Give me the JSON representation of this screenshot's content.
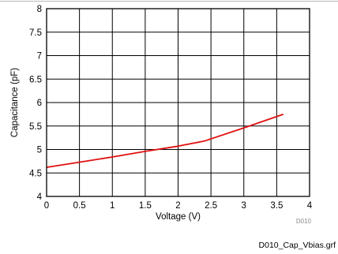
{
  "chart_data": {
    "type": "line",
    "title": "",
    "xlabel": "Voltage (V)",
    "ylabel": "Capacitance (pF)",
    "xlim": [
      0,
      4
    ],
    "ylim": [
      4,
      8
    ],
    "x_ticks": [
      "0",
      "0.5",
      "1",
      "1.5",
      "2",
      "2.5",
      "3",
      "3.5",
      "4"
    ],
    "y_ticks": [
      "4",
      "4.5",
      "5",
      "5.5",
      "6",
      "6.5",
      "7",
      "7.5",
      "8"
    ],
    "grid": true,
    "series": [
      {
        "color": "#e01010",
        "x": [
          0,
          0.5,
          1.0,
          1.5,
          2.0,
          2.4,
          3.0,
          3.6
        ],
        "y": [
          4.62,
          4.73,
          4.84,
          4.96,
          5.07,
          5.18,
          5.46,
          5.75
        ]
      }
    ],
    "plot_code": "D010"
  },
  "footer_label": "D010_Cap_Vbias.grf"
}
